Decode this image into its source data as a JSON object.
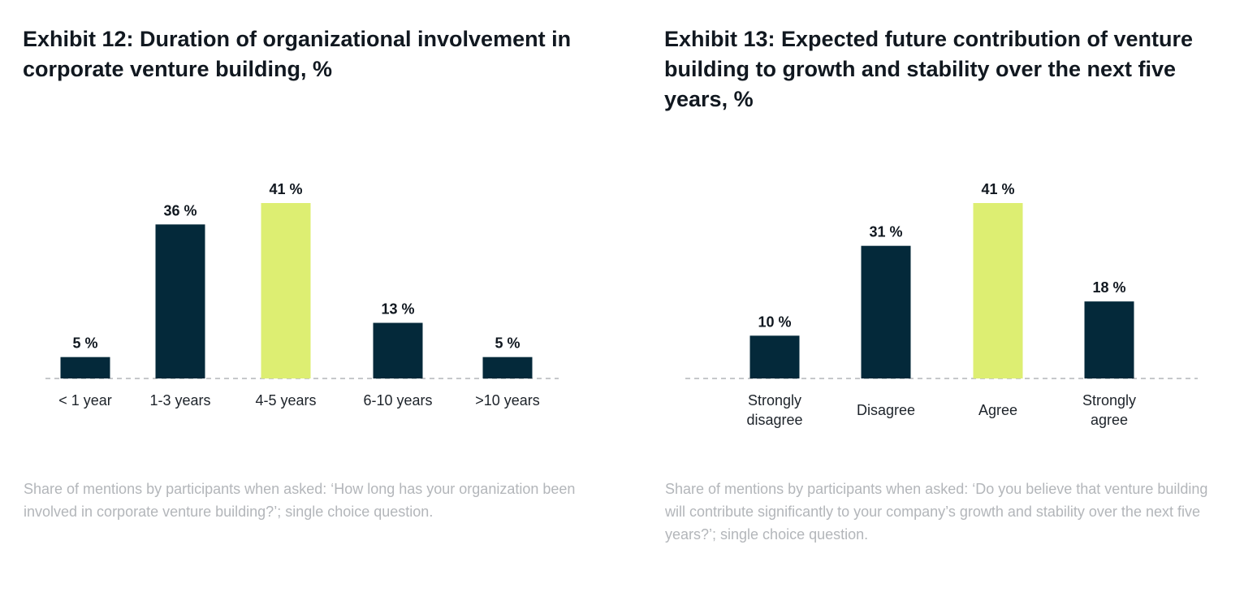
{
  "exhibits": [
    {
      "title": "Exhibit 12: Duration of organizational involvement in corporate venture building, %",
      "note": "Share of mentions by participants when asked: ‘How long has your organization been involved in corporate venture building?’; single choice question."
    },
    {
      "title": "Exhibit 13: Expected future contribution of venture building to growth and stability over the next five years, %",
      "note": "Share of mentions by participants when asked: ‘Do you believe that venture building will contribute significantly to your company’s growth and stability over the next five years?’; single choice question."
    }
  ],
  "colors": {
    "primary": "#04293A",
    "highlight": "#DDEE72",
    "baseline": "#b3b6ba"
  },
  "chart_data": [
    {
      "type": "bar",
      "title": "Exhibit 12: Duration of organizational involvement in corporate venture building, %",
      "xlabel": "",
      "ylabel": "",
      "categories": [
        "< 1 year",
        "1-3 years",
        "4-5 years",
        "6-10 years",
        ">10 years"
      ],
      "values": [
        5,
        36,
        41,
        13,
        5
      ],
      "value_labels": [
        "5 %",
        "36 %",
        "41 %",
        "13 %",
        "5 %"
      ],
      "highlight_index": 2,
      "ylim": [
        0,
        41
      ],
      "grid": false
    },
    {
      "type": "bar",
      "title": "Exhibit 13: Expected future contribution of venture building to growth and stability over the next five years, %",
      "xlabel": "",
      "ylabel": "",
      "categories": [
        [
          "Strongly",
          "disagree"
        ],
        [
          "Disagree"
        ],
        [
          "Agree"
        ],
        [
          "Strongly",
          "agree"
        ]
      ],
      "values": [
        10,
        31,
        41,
        18
      ],
      "value_labels": [
        "10 %",
        "31 %",
        "41 %",
        "18 %"
      ],
      "highlight_index": 2,
      "ylim": [
        0,
        41
      ],
      "grid": false
    }
  ]
}
